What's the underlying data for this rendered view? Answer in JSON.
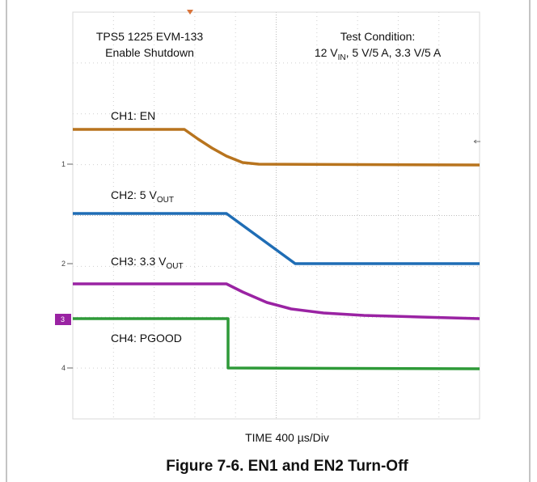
{
  "scope": {
    "title_line1": "TPS5 1225 EVM-133",
    "title_line2": "Enable Shutdown",
    "condition_line1": "Test Condition:",
    "condition_line2": {
      "pre": "12 V",
      "sub": "IN",
      "post": ", 5 V/5 A, 3.3 V/5 A"
    },
    "channels": [
      {
        "label": "CH1: EN",
        "marker": "1"
      },
      {
        "label": "CH2: 5 V",
        "sub": "OUT",
        "marker": "2"
      },
      {
        "label": "CH3: 3.3 V",
        "sub": "OUT",
        "marker": "3"
      },
      {
        "label": "CH4: PGOOD",
        "marker": "4"
      }
    ],
    "time_label": "TIME 400 µs/Div"
  },
  "caption": "Figure 7-6. EN1 and EN2 Turn-Off"
}
